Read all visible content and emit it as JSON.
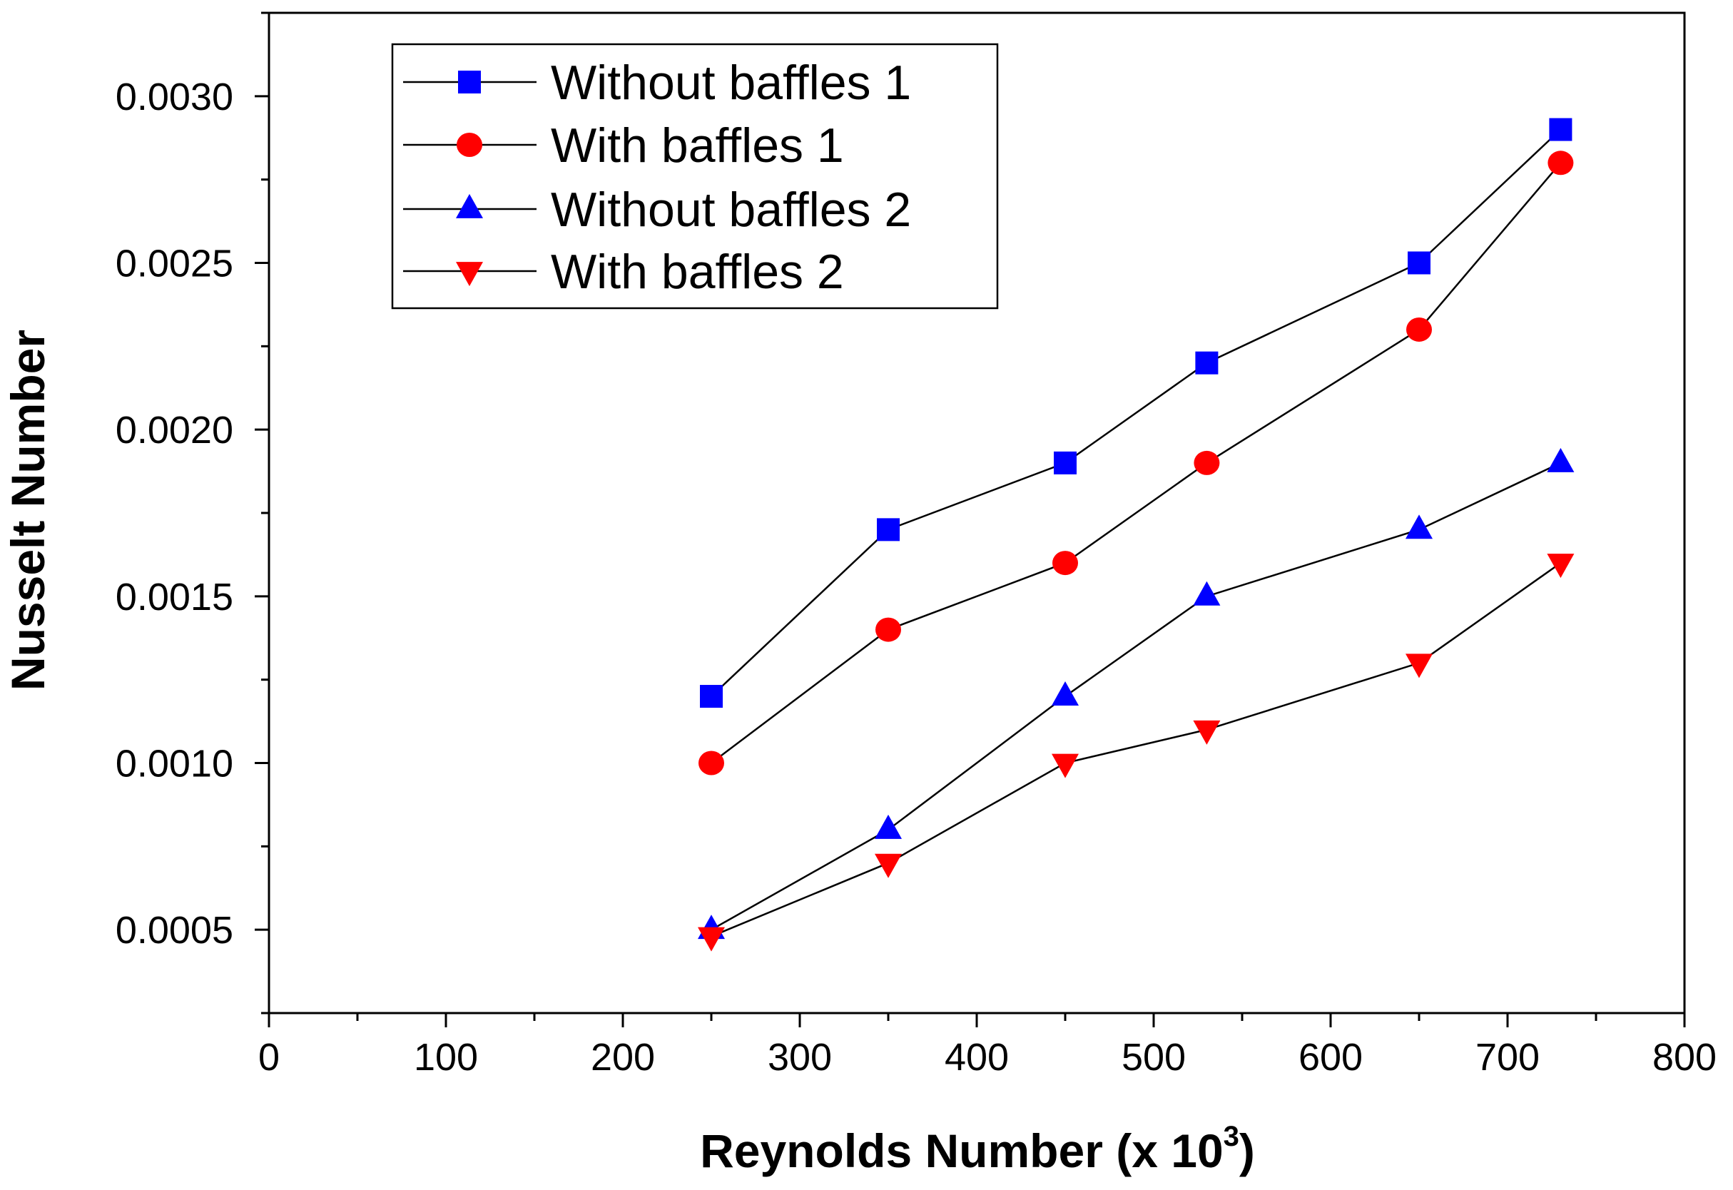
{
  "chart_data": {
    "type": "line",
    "title": "",
    "xlabel": "Reynolds Number (x 10",
    "xlabel_superscript": "3",
    "xlabel_suffix": ")",
    "ylabel": "Nusselt Number",
    "xlim": [
      0,
      800
    ],
    "ylim": [
      0.00025,
      0.00325
    ],
    "x_ticks": [
      0,
      100,
      200,
      300,
      400,
      500,
      600,
      700,
      800
    ],
    "x_tick_labels": [
      "0",
      "100",
      "200",
      "300",
      "400",
      "500",
      "600",
      "700",
      "800"
    ],
    "y_ticks": [
      0.0005,
      0.001,
      0.0015,
      0.002,
      0.0025,
      0.003
    ],
    "y_tick_labels": [
      "0.0005",
      "0.0010",
      "0.0015",
      "0.0020",
      "0.0025",
      "0.0030"
    ],
    "grid": false,
    "legend_position": "top-left",
    "x": [
      250,
      350,
      450,
      530,
      650,
      730
    ],
    "series": [
      {
        "name": "Without baffles 1",
        "marker": "square",
        "color": "#0000ff",
        "values": [
          0.0012,
          0.0017,
          0.0019,
          0.0022,
          0.0025,
          0.0029
        ]
      },
      {
        "name": "With baffles 1",
        "marker": "circle",
        "color": "#ff0000",
        "values": [
          0.001,
          0.0014,
          0.0016,
          0.0019,
          0.0023,
          0.0028
        ]
      },
      {
        "name": "Without baffles 2",
        "marker": "triangle-up",
        "color": "#0000ff",
        "values": [
          0.0005,
          0.0008,
          0.0012,
          0.0015,
          0.0017,
          0.0019
        ]
      },
      {
        "name": "With baffles 2",
        "marker": "triangle-down",
        "color": "#ff0000",
        "values": [
          0.00048,
          0.0007,
          0.001,
          0.0011,
          0.0013,
          0.0016
        ]
      }
    ]
  }
}
